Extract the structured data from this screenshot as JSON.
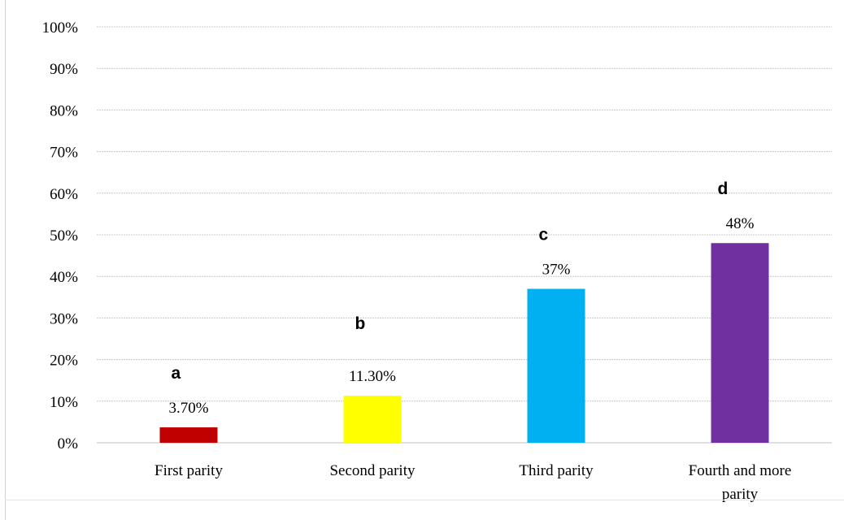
{
  "chart_data": {
    "type": "bar",
    "categories": [
      [
        "First parity"
      ],
      [
        "Second parity"
      ],
      [
        "Third parity"
      ],
      [
        "Fourth and more",
        "parity"
      ]
    ],
    "values": [
      3.7,
      11.3,
      37,
      48
    ],
    "data_labels": [
      "3.70%",
      "11.30%",
      "37%",
      "48%"
    ],
    "group_letters": [
      "a",
      "b",
      "c",
      "d"
    ],
    "colors": [
      "#c00000",
      "#ffff00",
      "#00b0f0",
      "#7030a0"
    ],
    "ylim": [
      0,
      100
    ],
    "yticks": [
      0,
      10,
      20,
      30,
      40,
      50,
      60,
      70,
      80,
      90,
      100
    ],
    "ytick_labels": [
      "0%",
      "10%",
      "20%",
      "30%",
      "40%",
      "50%",
      "60%",
      "70%",
      "80%",
      "90%",
      "100%"
    ],
    "grid": true,
    "title": "",
    "xlabel": "",
    "ylabel": ""
  }
}
